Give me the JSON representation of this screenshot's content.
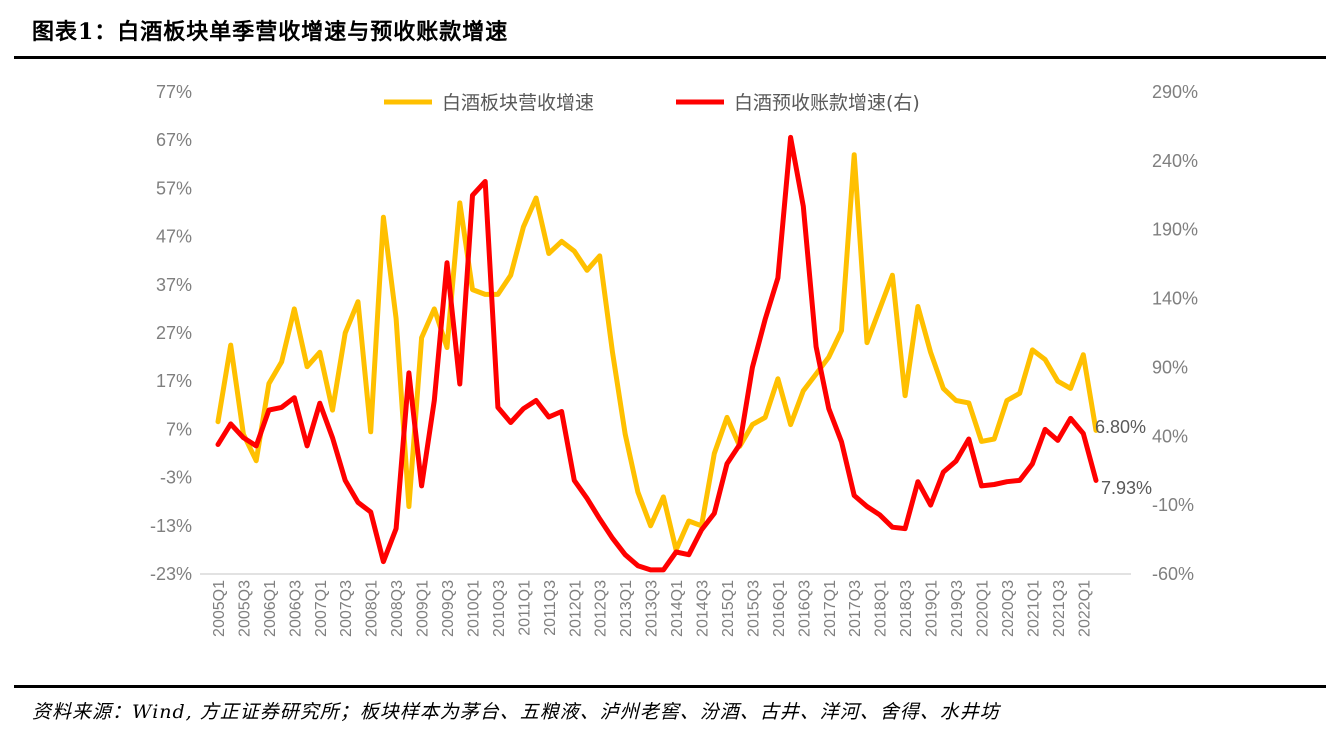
{
  "figure": {
    "title": "图表1：白酒板块单季营收增速与预收账款增速",
    "source": "资料来源：Wind, 方正证券研究所；板块样本为茅台、五粮液、泸州老窖、汾酒、古井、洋河、舍得、水井坊"
  },
  "chart_data": {
    "type": "line",
    "title": "",
    "legend_position": "top",
    "grid": false,
    "left_axis": {
      "min": -23,
      "max": 77,
      "ticks": [
        "77%",
        "67%",
        "57%",
        "47%",
        "37%",
        "27%",
        "17%",
        "7%",
        "-3%",
        "-13%",
        "-23%"
      ]
    },
    "right_axis": {
      "min": -60,
      "max": 290,
      "ticks": [
        "290%",
        "240%",
        "190%",
        "140%",
        "90%",
        "40%",
        "-10%",
        "-60%"
      ]
    },
    "x": [
      "2005Q1",
      "2005Q2",
      "2005Q3",
      "2005Q4",
      "2006Q1",
      "2006Q2",
      "2006Q3",
      "2006Q4",
      "2007Q1",
      "2007Q2",
      "2007Q3",
      "2007Q4",
      "2008Q1",
      "2008Q2",
      "2008Q3",
      "2008Q4",
      "2009Q1",
      "2009Q2",
      "2009Q3",
      "2009Q4",
      "2010Q1",
      "2010Q2",
      "2010Q3",
      "2010Q4",
      "2011Q1",
      "2011Q2",
      "2011Q3",
      "2011Q4",
      "2012Q1",
      "2012Q2",
      "2012Q3",
      "2012Q4",
      "2013Q1",
      "2013Q2",
      "2013Q3",
      "2013Q4",
      "2014Q1",
      "2014Q2",
      "2014Q3",
      "2014Q4",
      "2015Q1",
      "2015Q2",
      "2015Q3",
      "2015Q4",
      "2016Q1",
      "2016Q2",
      "2016Q3",
      "2016Q4",
      "2017Q1",
      "2017Q2",
      "2017Q3",
      "2017Q4",
      "2018Q1",
      "2018Q2",
      "2018Q3",
      "2018Q4",
      "2019Q1",
      "2019Q2",
      "2019Q3",
      "2019Q4",
      "2020Q1",
      "2020Q2",
      "2020Q3",
      "2020Q4",
      "2021Q1",
      "2021Q2",
      "2021Q3",
      "2021Q4",
      "2022Q1",
      "2022Q2"
    ],
    "x_tick_labels": [
      "2005Q1",
      "2005Q3",
      "2006Q1",
      "2006Q3",
      "2007Q1",
      "2007Q3",
      "2008Q1",
      "2008Q3",
      "2009Q1",
      "2009Q3",
      "2010Q1",
      "2010Q3",
      "2011Q1",
      "2011Q3",
      "2012Q1",
      "2012Q3",
      "2013Q1",
      "2013Q3",
      "2014Q1",
      "2014Q3",
      "2015Q1",
      "2015Q3",
      "2016Q1",
      "2016Q3",
      "2017Q1",
      "2017Q3",
      "2018Q1",
      "2018Q3",
      "2019Q1",
      "2019Q3",
      "2020Q1",
      "2020Q3",
      "2021Q1",
      "2021Q3",
      "2022Q1"
    ],
    "series": [
      {
        "name": "白酒板块营收增速",
        "axis": "left",
        "color": "#FFC000",
        "values": [
          8.6,
          24.5,
          6,
          0.5,
          16.5,
          21,
          32,
          20,
          23,
          11,
          27,
          33.5,
          6.5,
          51,
          30,
          -9,
          26,
          32,
          24,
          54,
          36,
          35,
          35,
          39,
          49,
          55,
          43.5,
          46,
          44,
          40,
          43,
          23,
          6,
          -6,
          -13,
          -7,
          -18,
          -12,
          -13,
          2,
          9.5,
          3.5,
          8,
          9.5,
          17.5,
          8,
          15,
          18.5,
          22,
          27.5,
          64,
          25,
          32,
          39,
          14,
          32.5,
          23,
          15.5,
          13,
          12.5,
          4.5,
          5,
          13,
          14.5,
          23.5,
          21.5,
          17,
          15.5,
          22.5,
          6.8
        ],
        "end_label": "6.80%"
      },
      {
        "name": "白酒预收账款增速(右)",
        "axis": "right",
        "color": "#FF0000",
        "values": [
          34,
          49,
          39,
          33,
          59,
          61,
          68,
          33,
          64,
          39,
          8,
          -8,
          -15,
          -51,
          -27,
          86,
          4,
          66,
          166,
          78,
          215,
          225,
          61,
          50,
          60,
          66,
          54,
          58,
          8,
          -5,
          -20,
          -34,
          -46,
          -54,
          -57,
          -57,
          -44,
          -46,
          -28,
          -16,
          20,
          34,
          90,
          125,
          155,
          257,
          207,
          105,
          60,
          36,
          -3,
          -11,
          -17,
          -26,
          -27,
          7,
          -10,
          14,
          22,
          38,
          4,
          5,
          7,
          8,
          20,
          45,
          37,
          53,
          42,
          8
        ]
      }
    ],
    "annotations": [
      {
        "series": 1,
        "text": "7.93%"
      }
    ]
  }
}
